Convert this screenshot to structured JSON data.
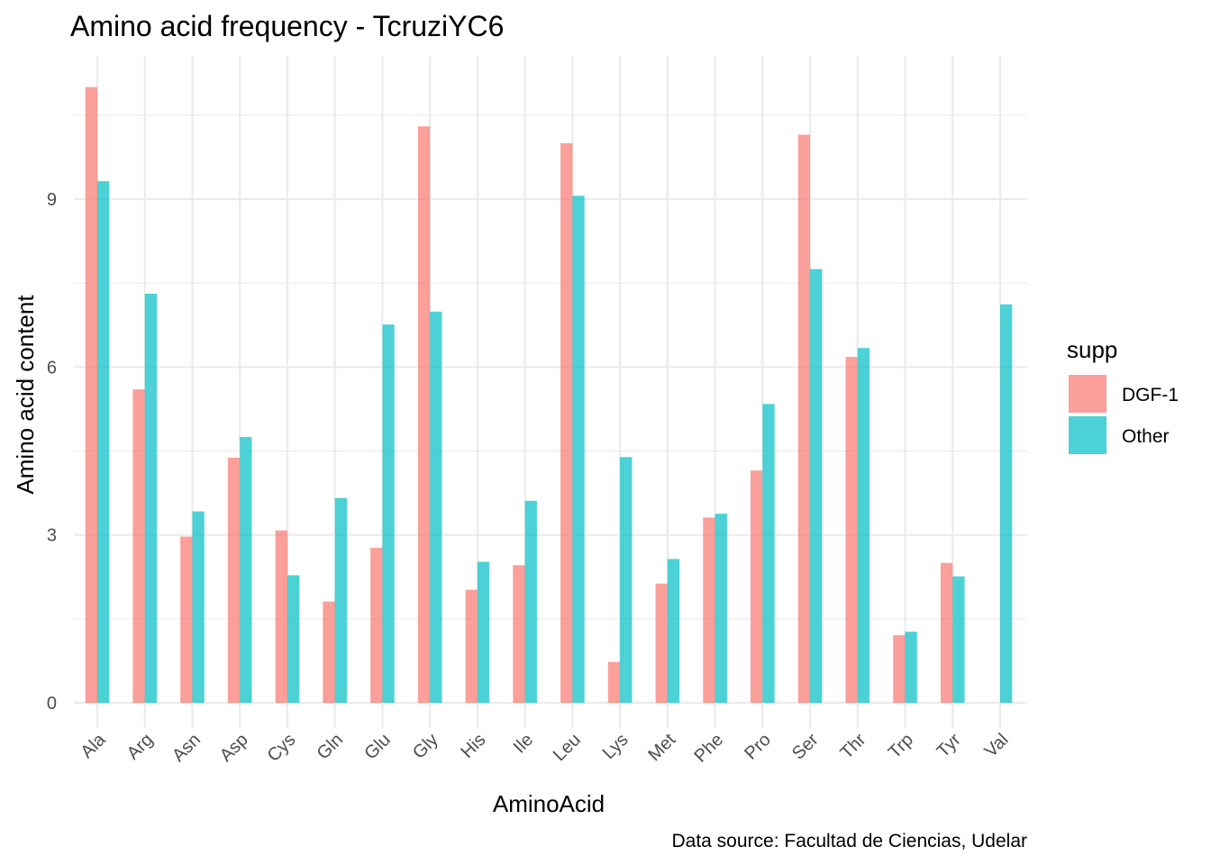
{
  "chart_data": {
    "type": "bar",
    "title": "Amino acid frequency - TcruziYC6",
    "xlabel": "AminoAcid",
    "ylabel": "Amino acid content",
    "caption": "Data source: Facultad de Ciencias, Udelar",
    "legend_title": "supp",
    "legend_position": "right",
    "grid": true,
    "ylim": [
      0,
      11.5
    ],
    "yticks": [
      "0",
      "3",
      "6",
      "9"
    ],
    "categories": [
      "Ala",
      "Arg",
      "Asn",
      "Asp",
      "Cys",
      "Gln",
      "Glu",
      "Gly",
      "His",
      "Ile",
      "Leu",
      "Lys",
      "Met",
      "Phe",
      "Pro",
      "Ser",
      "Thr",
      "Trp",
      "Tyr",
      "Val"
    ],
    "series": [
      {
        "name": "DGF-1",
        "color": "#F8766D",
        "values": [
          11.0,
          5.6,
          2.97,
          4.38,
          3.08,
          1.81,
          2.77,
          10.3,
          2.02,
          2.46,
          10.0,
          0.73,
          2.13,
          3.31,
          4.15,
          10.15,
          6.18,
          1.21,
          2.5,
          0
        ]
      },
      {
        "name": "Other",
        "color": "#00BFC4",
        "values": [
          9.32,
          7.31,
          3.42,
          4.75,
          2.28,
          3.66,
          6.76,
          6.99,
          2.52,
          3.61,
          9.06,
          4.39,
          2.57,
          3.38,
          5.34,
          7.75,
          6.34,
          1.27,
          2.26,
          7.12
        ]
      }
    ]
  }
}
